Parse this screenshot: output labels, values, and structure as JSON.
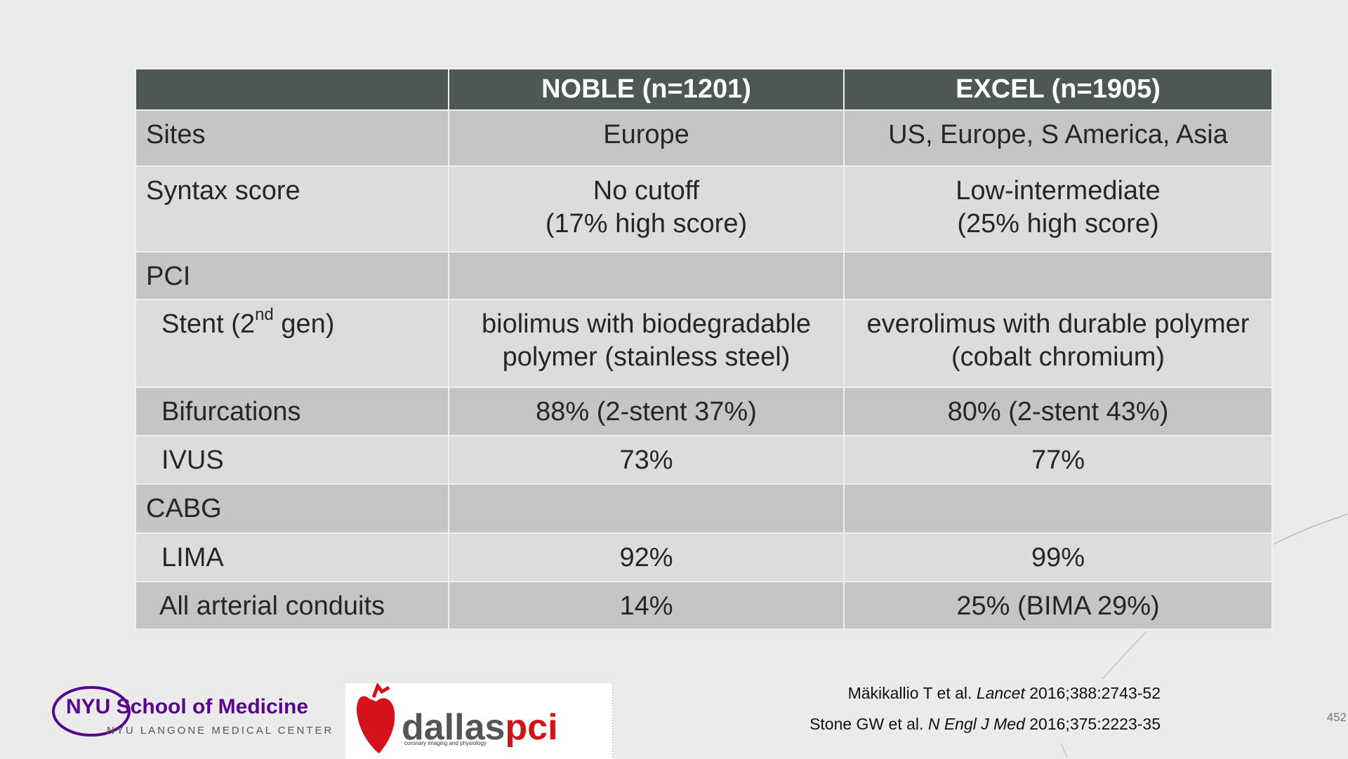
{
  "table": {
    "header": [
      "NOBLE (n=1201)",
      "EXCEL (n=1905)"
    ],
    "rows": [
      [
        "Sites",
        "Europe",
        "US, Europe, S America, Asia"
      ],
      [
        "Syntax score",
        "No cutoff\n(17% high score)",
        "Low-intermediate\n(25% high score)"
      ],
      [
        "PCI",
        "",
        ""
      ],
      [
        [
          "Stent (2",
          "nd",
          " gen)"
        ],
        "biolimus with biodegradable\npolymer (stainless steel)",
        "everolimus with durable polymer\n(cobalt chromium)"
      ],
      [
        "Bifurcations",
        "88% (2-stent 37%)",
        "80% (2-stent 43%)"
      ],
      [
        "IVUS",
        "73%",
        "77%"
      ],
      [
        "CABG",
        "",
        ""
      ],
      [
        "LIMA",
        "92%",
        "99%"
      ],
      [
        "All arterial conduits",
        "14%",
        "25% (BIMA 29%)"
      ]
    ]
  },
  "footer": {
    "logos": {
      "nyu": "NYU School of Medicine",
      "nyu_sub": "NYU LANGONE MEDICAL CENTER",
      "dallas": "dallas",
      "pci": "pci",
      "dallas_sub": "coronary imaging and physiology"
    },
    "references": [
      [
        "Mäkikallio T et al. ",
        "Lancet",
        " 2016;388:2743-52"
      ],
      [
        "Stone GW et al. ",
        "N Engl J Med",
        " 2016;375:2223-35"
      ]
    ],
    "page_number": "452"
  }
}
